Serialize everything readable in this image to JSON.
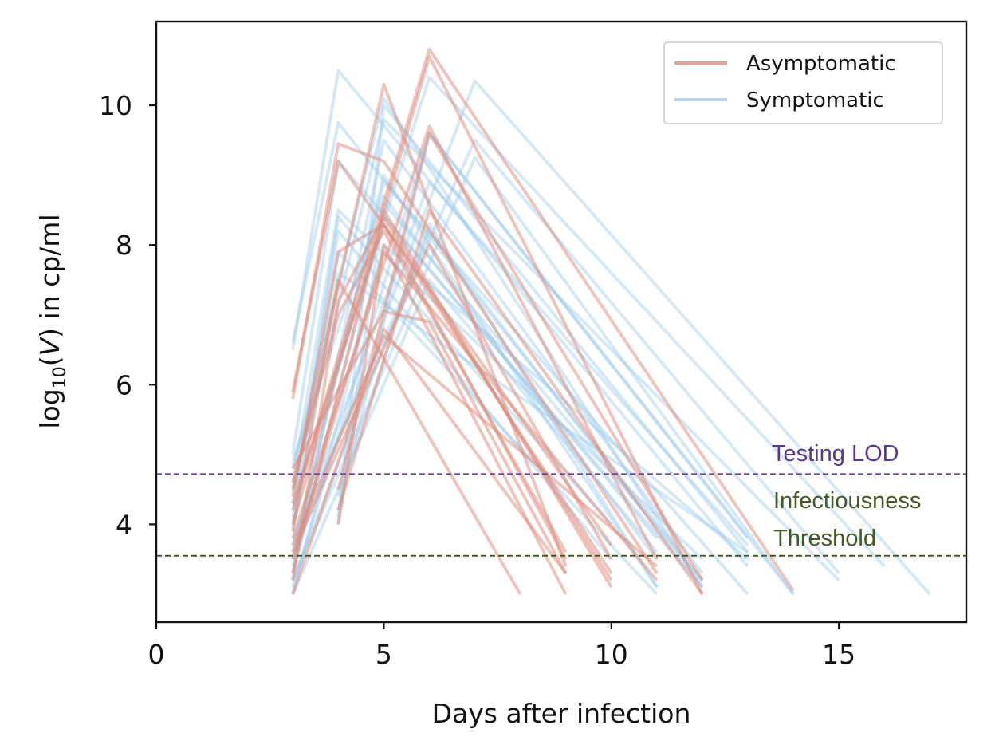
{
  "chart_data": {
    "type": "line",
    "title": "",
    "xlabel": "Days after infection",
    "ylabel_parts": {
      "pre": "log",
      "sub": "10",
      "mid": "(",
      "var": "V",
      "post": ") in cp/ml"
    },
    "xlim": [
      0,
      17.8
    ],
    "ylim": [
      2.6,
      11.2
    ],
    "xticks": [
      0,
      5,
      10,
      15
    ],
    "yticks": [
      4,
      6,
      8,
      10
    ],
    "xtick_labels": [
      "0",
      "5",
      "10",
      "15"
    ],
    "ytick_labels": [
      "4",
      "6",
      "8",
      "10"
    ],
    "legend": {
      "placement": "top-right",
      "entries": [
        {
          "label": "Asymptomatic",
          "color": "#e8a294"
        },
        {
          "label": "Symptomatic",
          "color": "#b7d7ee"
        }
      ]
    },
    "thresholds": [
      {
        "name": "Testing LOD",
        "label_lines": [
          "Testing LOD"
        ],
        "y": 4.72,
        "color": "#6a3d9a",
        "text_color": "#5b3590"
      },
      {
        "name": "Infectiousness Threshold",
        "label_lines": [
          "Infectiousness",
          "Threshold"
        ],
        "y": 3.55,
        "color": "#3d5a1f",
        "text_color": "#3f5a22"
      }
    ],
    "series": [
      {
        "name": "Symptomatic",
        "color": "#9ac8e9",
        "opacity": 0.42,
        "trajectories": [
          [
            [
              3,
              6.5
            ],
            [
              4,
              10.5
            ],
            [
              13,
              3.4
            ]
          ],
          [
            [
              3,
              6.6
            ],
            [
              4,
              9.75
            ],
            [
              12,
              3.2
            ]
          ],
          [
            [
              3,
              4.8
            ],
            [
              5,
              10.1
            ],
            [
              12,
              3.1
            ]
          ],
          [
            [
              3,
              4.5
            ],
            [
              5,
              9.8
            ],
            [
              15,
              3.2
            ]
          ],
          [
            [
              3,
              4.2
            ],
            [
              6,
              10.4
            ],
            [
              16,
              3.4
            ]
          ],
          [
            [
              3,
              3.5
            ],
            [
              7,
              10.35
            ],
            [
              17,
              3.0
            ]
          ],
          [
            [
              3,
              3.8
            ],
            [
              7,
              9.5
            ],
            [
              15,
              3.3
            ]
          ],
          [
            [
              3,
              3.2
            ],
            [
              7,
              9.25
            ],
            [
              14,
              3.0
            ]
          ],
          [
            [
              3,
              5.0
            ],
            [
              4,
              9.2
            ],
            [
              11,
              3.8
            ]
          ],
          [
            [
              3,
              4.6
            ],
            [
              4,
              8.5
            ],
            [
              12,
              3.5
            ]
          ],
          [
            [
              3,
              4.3
            ],
            [
              4,
              8.2
            ],
            [
              10,
              3.5
            ]
          ],
          [
            [
              3,
              4.0
            ],
            [
              4,
              7.9
            ],
            [
              11,
              3.0
            ]
          ],
          [
            [
              3,
              3.9
            ],
            [
              4,
              7.6
            ],
            [
              13,
              3.6
            ]
          ],
          [
            [
              3,
              3.3
            ],
            [
              5,
              9.5
            ],
            [
              12,
              3.3
            ]
          ],
          [
            [
              3,
              3.6
            ],
            [
              5,
              8.9
            ],
            [
              13,
              3.0
            ]
          ],
          [
            [
              3,
              4.9
            ],
            [
              5,
              8.7
            ],
            [
              11,
              3.5
            ]
          ],
          [
            [
              3,
              3.4
            ],
            [
              5,
              8.4
            ],
            [
              12,
              3.1
            ]
          ],
          [
            [
              3,
              3.0
            ],
            [
              5,
              8.0
            ],
            [
              13,
              3.5
            ]
          ],
          [
            [
              3,
              3.1
            ],
            [
              6,
              9.6
            ],
            [
              14,
              3.0
            ]
          ],
          [
            [
              3,
              3.7
            ],
            [
              6,
              8.9
            ],
            [
              13,
              3.7
            ]
          ],
          [
            [
              3,
              3.2
            ],
            [
              6,
              8.2
            ],
            [
              12,
              3.1
            ]
          ],
          [
            [
              3,
              3.0
            ],
            [
              6,
              7.5
            ],
            [
              11,
              3.6
            ]
          ],
          [
            [
              4,
              4.1
            ],
            [
              5,
              10.0
            ],
            [
              13,
              3.6
            ]
          ],
          [
            [
              4,
              4.0
            ],
            [
              5,
              8.6
            ],
            [
              12,
              3.2
            ]
          ],
          [
            [
              4,
              4.2
            ],
            [
              6,
              9.6
            ],
            [
              13,
              3.8
            ]
          ],
          [
            [
              4,
              4.4
            ],
            [
              6,
              8.3
            ],
            [
              11,
              3.1
            ]
          ],
          [
            [
              3,
              4.1
            ],
            [
              4,
              8.4
            ],
            [
              10,
              4.0
            ]
          ],
          [
            [
              3,
              3.5
            ],
            [
              5,
              9.0
            ],
            [
              11,
              3.1
            ]
          ]
        ]
      },
      {
        "name": "Asymptomatic",
        "color": "#dd8a7a",
        "opacity": 0.5,
        "trajectories": [
          [
            [
              3,
              5.8
            ],
            [
              4,
              9.45
            ],
            [
              5,
              9.2
            ],
            [
              11,
              3.3
            ]
          ],
          [
            [
              3,
              5.9
            ],
            [
              4,
              9.2
            ],
            [
              10,
              3.7
            ]
          ],
          [
            [
              3,
              4.5
            ],
            [
              5,
              10.3
            ],
            [
              9,
              3.4
            ]
          ],
          [
            [
              3,
              4.2
            ],
            [
              6,
              10.8
            ],
            [
              14,
              3.05
            ]
          ],
          [
            [
              3,
              4.0
            ],
            [
              6,
              10.7
            ],
            [
              12,
              3.0
            ]
          ],
          [
            [
              3,
              3.8
            ],
            [
              6,
              9.7
            ],
            [
              11,
              3.5
            ]
          ],
          [
            [
              3,
              4.4
            ],
            [
              4,
              7.9
            ],
            [
              5,
              8.3
            ],
            [
              9,
              3.5
            ]
          ],
          [
            [
              3,
              3.9
            ],
            [
              4,
              7.5
            ],
            [
              8,
              3.0
            ]
          ],
          [
            [
              3,
              4.6
            ],
            [
              4,
              7.0
            ],
            [
              5,
              8.2
            ],
            [
              9,
              3.6
            ]
          ],
          [
            [
              3,
              3.3
            ],
            [
              5,
              8.5
            ],
            [
              10,
              3.1
            ]
          ],
          [
            [
              3,
              3.5
            ],
            [
              5,
              7.9
            ],
            [
              11,
              3.2
            ]
          ],
          [
            [
              3,
              3.0
            ],
            [
              5,
              6.8
            ],
            [
              9,
              3.3
            ]
          ],
          [
            [
              3,
              3.2
            ],
            [
              4,
              7.2
            ],
            [
              5,
              8.4
            ],
            [
              10,
              3.2
            ]
          ],
          [
            [
              3,
              3.6
            ],
            [
              6,
              8.0
            ],
            [
              10,
              3.5
            ]
          ],
          [
            [
              3,
              4.8
            ],
            [
              5,
              7.05
            ],
            [
              6,
              6.9
            ],
            [
              9,
              3.3
            ]
          ],
          [
            [
              3,
              3.7
            ],
            [
              5,
              6.7
            ],
            [
              11,
              3.4
            ]
          ],
          [
            [
              4,
              4.2
            ],
            [
              6,
              8.5
            ],
            [
              12,
              3.0
            ]
          ],
          [
            [
              4,
              4.5
            ],
            [
              6,
              9.6
            ],
            [
              12,
              3.2
            ]
          ],
          [
            [
              4,
              4.0
            ],
            [
              5,
              8.0
            ],
            [
              9,
              3.0
            ]
          ],
          [
            [
              3,
              4.3
            ],
            [
              5,
              8.3
            ],
            [
              10,
              3.3
            ]
          ]
        ]
      }
    ]
  }
}
